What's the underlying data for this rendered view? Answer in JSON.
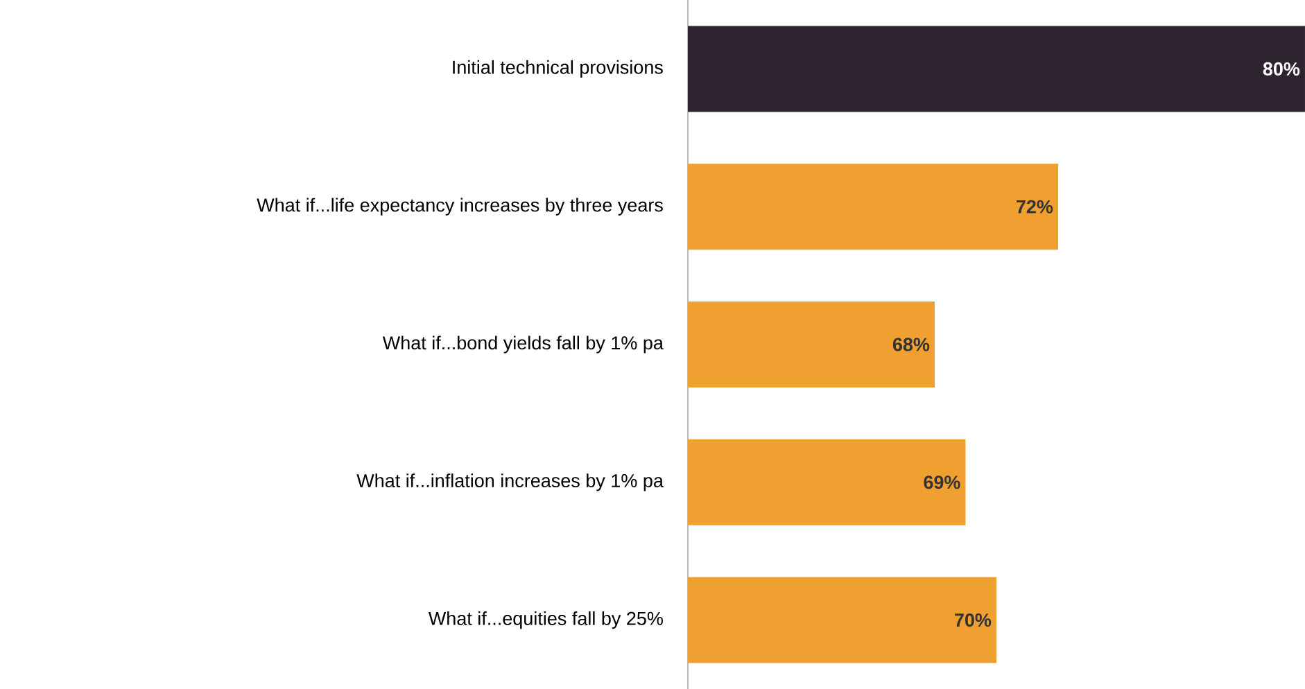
{
  "chart_data": {
    "type": "bar",
    "orientation": "horizontal",
    "categories": [
      "Initial technical provisions",
      "What if...life expectancy increases by three years",
      "What if...bond yields fall by 1% pa",
      "What if...inflation increases by 1% pa",
      "What if...equities fall by 25%"
    ],
    "values": [
      80,
      72,
      68,
      69,
      70
    ],
    "colors": [
      "#2e2430",
      "#f0a030",
      "#f0a030",
      "#f0a030",
      "#f0a030"
    ],
    "value_labels": [
      "80%",
      "72%",
      "68%",
      "69%",
      "70%"
    ],
    "xlim": [
      60,
      80
    ]
  }
}
